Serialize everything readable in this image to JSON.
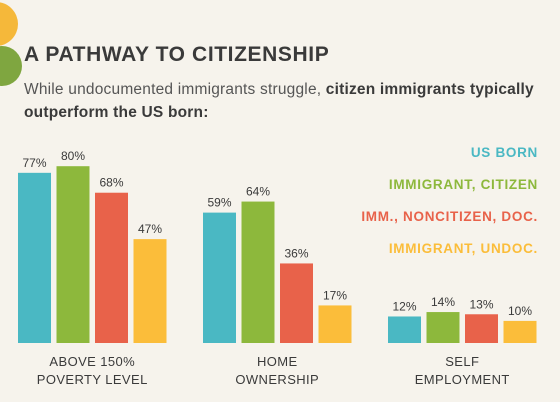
{
  "title": "A PATHWAY TO CITIZENSHIP",
  "subtitle_plain": "While undocumented immigrants struggle, ",
  "subtitle_bold": "citizen immigrants typically outperform the US born:",
  "colors": {
    "us_born": "#4ab8c3",
    "immigrant_citizen": "#8db83c",
    "noncitizen_doc": "#e8624a",
    "undocumented": "#fbbd3a",
    "text": "#3a3a3a",
    "background": "#f6f3ec"
  },
  "chart_data": {
    "type": "bar",
    "title": "A PATHWAY TO CITIZENSHIP",
    "categories": [
      "ABOVE 150% POVERTY LEVEL",
      "HOME OWNERSHIP",
      "SELF EMPLOYMENT"
    ],
    "category_lines": [
      [
        "ABOVE 150%",
        "POVERTY LEVEL"
      ],
      [
        "HOME",
        "OWNERSHIP"
      ],
      [
        "SELF",
        "EMPLOYMENT"
      ]
    ],
    "series": [
      {
        "name": "US BORN",
        "color": "#4ab8c3",
        "values": [
          77,
          59,
          12
        ],
        "labels": [
          "77%",
          "59%",
          "12%"
        ]
      },
      {
        "name": "IMMIGRANT, CITIZEN",
        "color": "#8db83c",
        "values": [
          80,
          64,
          14
        ],
        "labels": [
          "80%",
          "64%",
          "14%"
        ]
      },
      {
        "name": "IMM., NONCITIZEN, DOC.",
        "color": "#e8624a",
        "values": [
          68,
          36,
          13
        ],
        "labels": [
          "68%",
          "36%",
          "13%"
        ]
      },
      {
        "name": "IMMIGRANT, UNDOC.",
        "color": "#fbbd3a",
        "values": [
          47,
          17,
          10
        ],
        "labels": [
          "47%",
          "17%",
          "10%"
        ]
      }
    ],
    "ylim": [
      0,
      100
    ],
    "legend_position": "top-right",
    "grid": false
  }
}
